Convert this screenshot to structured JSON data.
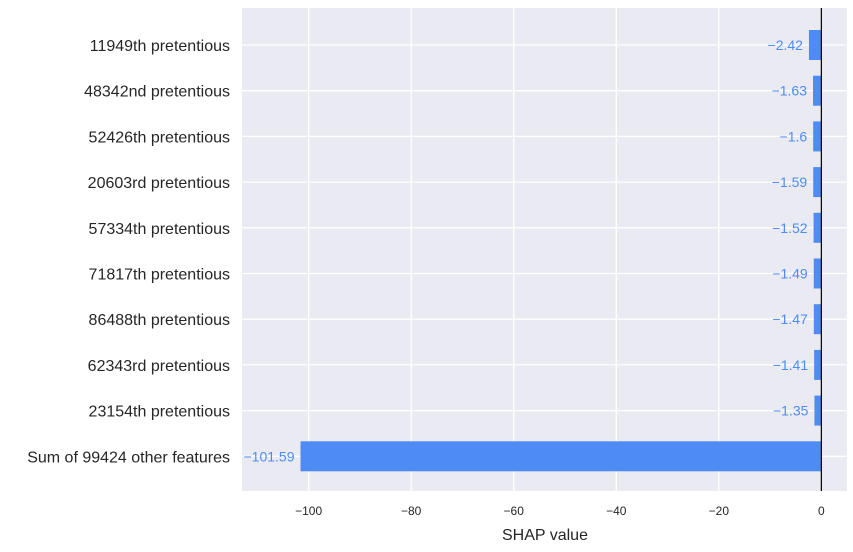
{
  "chart_data": {
    "type": "bar",
    "orientation": "horizontal",
    "categories": [
      "11949th pretentious",
      "48342nd pretentious",
      "52426th pretentious",
      "20603rd pretentious",
      "57334th pretentious",
      "71817th pretentious",
      "86488th pretentious",
      "62343rd pretentious",
      "23154th pretentious",
      "Sum of 99424 other features"
    ],
    "values": [
      -2.42,
      -1.63,
      -1.6,
      -1.59,
      -1.52,
      -1.49,
      -1.47,
      -1.41,
      -1.35,
      -101.59
    ],
    "data_labels": [
      "−2.42",
      "−1.63",
      "−1.6",
      "−1.59",
      "−1.52",
      "−1.49",
      "−1.47",
      "−1.41",
      "−1.35",
      "−101.59"
    ],
    "xlabel": "SHAP value",
    "xlim": [
      -113,
      5
    ],
    "xticks": [
      -100,
      -80,
      -60,
      -40,
      -20,
      0
    ],
    "xtick_labels": [
      "−100",
      "−80",
      "−60",
      "−40",
      "−20",
      "0"
    ],
    "grid": true,
    "zero_line": true,
    "colors": {
      "bar": "#4f8bf5",
      "data_label": "#4f8bf5",
      "plot_background": "#eaeaf2",
      "grid": "#ffffff",
      "zero_line": "#000000",
      "text": "#262626"
    }
  }
}
